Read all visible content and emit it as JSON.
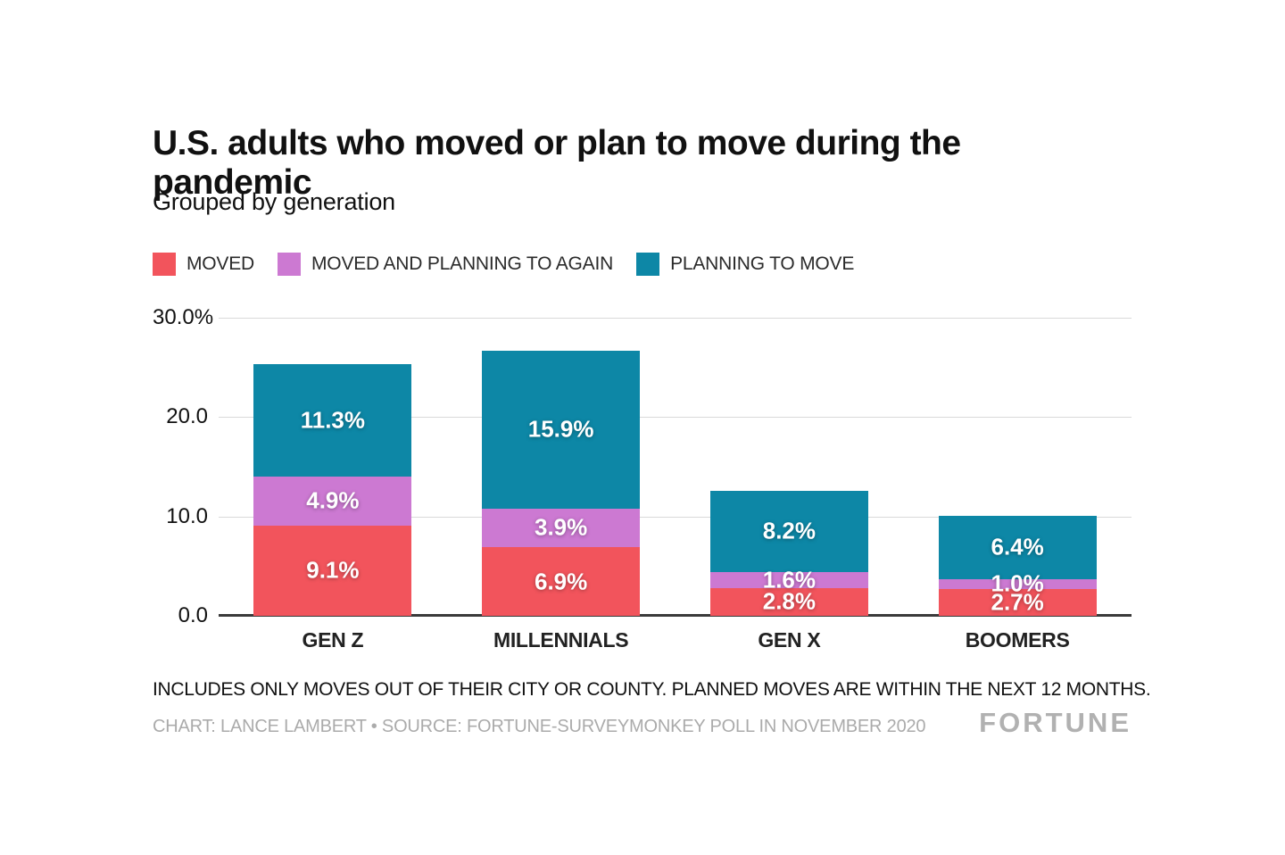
{
  "header": {
    "title": "U.S. adults who moved or plan to move during the pandemic",
    "subtitle": "Grouped by generation"
  },
  "legend": {
    "items": [
      {
        "label": "MOVED",
        "color": "#F2545C"
      },
      {
        "label": "MOVED AND PLANNING TO AGAIN",
        "color": "#CC79D2"
      },
      {
        "label": "PLANNING TO MOVE",
        "color": "#0D87A6"
      }
    ]
  },
  "chart_data": {
    "type": "bar",
    "stacked": true,
    "title": "U.S. adults who moved or plan to move during the pandemic",
    "subtitle": "Grouped by generation",
    "xlabel": "",
    "ylabel": "",
    "legend_position": "top",
    "grid": true,
    "categories": [
      "GEN Z",
      "MILLENNIALS",
      "GEN X",
      "BOOMERS"
    ],
    "series": [
      {
        "name": "MOVED",
        "color": "#F2545C",
        "values": [
          9.1,
          6.9,
          2.8,
          2.7
        ],
        "labels": [
          "9.1%",
          "6.9%",
          "2.8%",
          "2.7%"
        ]
      },
      {
        "name": "MOVED AND PLANNING TO AGAIN",
        "color": "#CC79D2",
        "values": [
          4.9,
          3.9,
          1.6,
          1.0
        ],
        "labels": [
          "4.9%",
          "3.9%",
          "1.6%",
          "1.0%"
        ]
      },
      {
        "name": "PLANNING TO MOVE",
        "color": "#0D87A6",
        "values": [
          11.3,
          15.9,
          8.2,
          6.4
        ],
        "labels": [
          "11.3%",
          "15.9%",
          "8.2%",
          "6.4%"
        ]
      }
    ],
    "y_axis": {
      "min": 0,
      "max": 30,
      "ticks": [
        {
          "value": 30,
          "label": "30.0%"
        },
        {
          "value": 20,
          "label": "20.0"
        },
        {
          "value": 10,
          "label": "10.0"
        },
        {
          "value": 0,
          "label": "0.0"
        }
      ]
    }
  },
  "footer": {
    "note": "INCLUDES ONLY MOVES OUT OF THEIR CITY OR COUNTY. PLANNED MOVES ARE WITHIN THE NEXT 12 MONTHS.",
    "credit": "CHART: LANCE LAMBERT • SOURCE: FORTUNE-SURVEYMONKEY POLL IN NOVEMBER 2020",
    "logo": "FORTUNE"
  },
  "colors": {
    "gridline": "#D9D9D9",
    "axis": "#3A3A3A",
    "text": "#111111",
    "credit_gray": "#ABABAB",
    "logo_gray": "#B1B1B1"
  }
}
